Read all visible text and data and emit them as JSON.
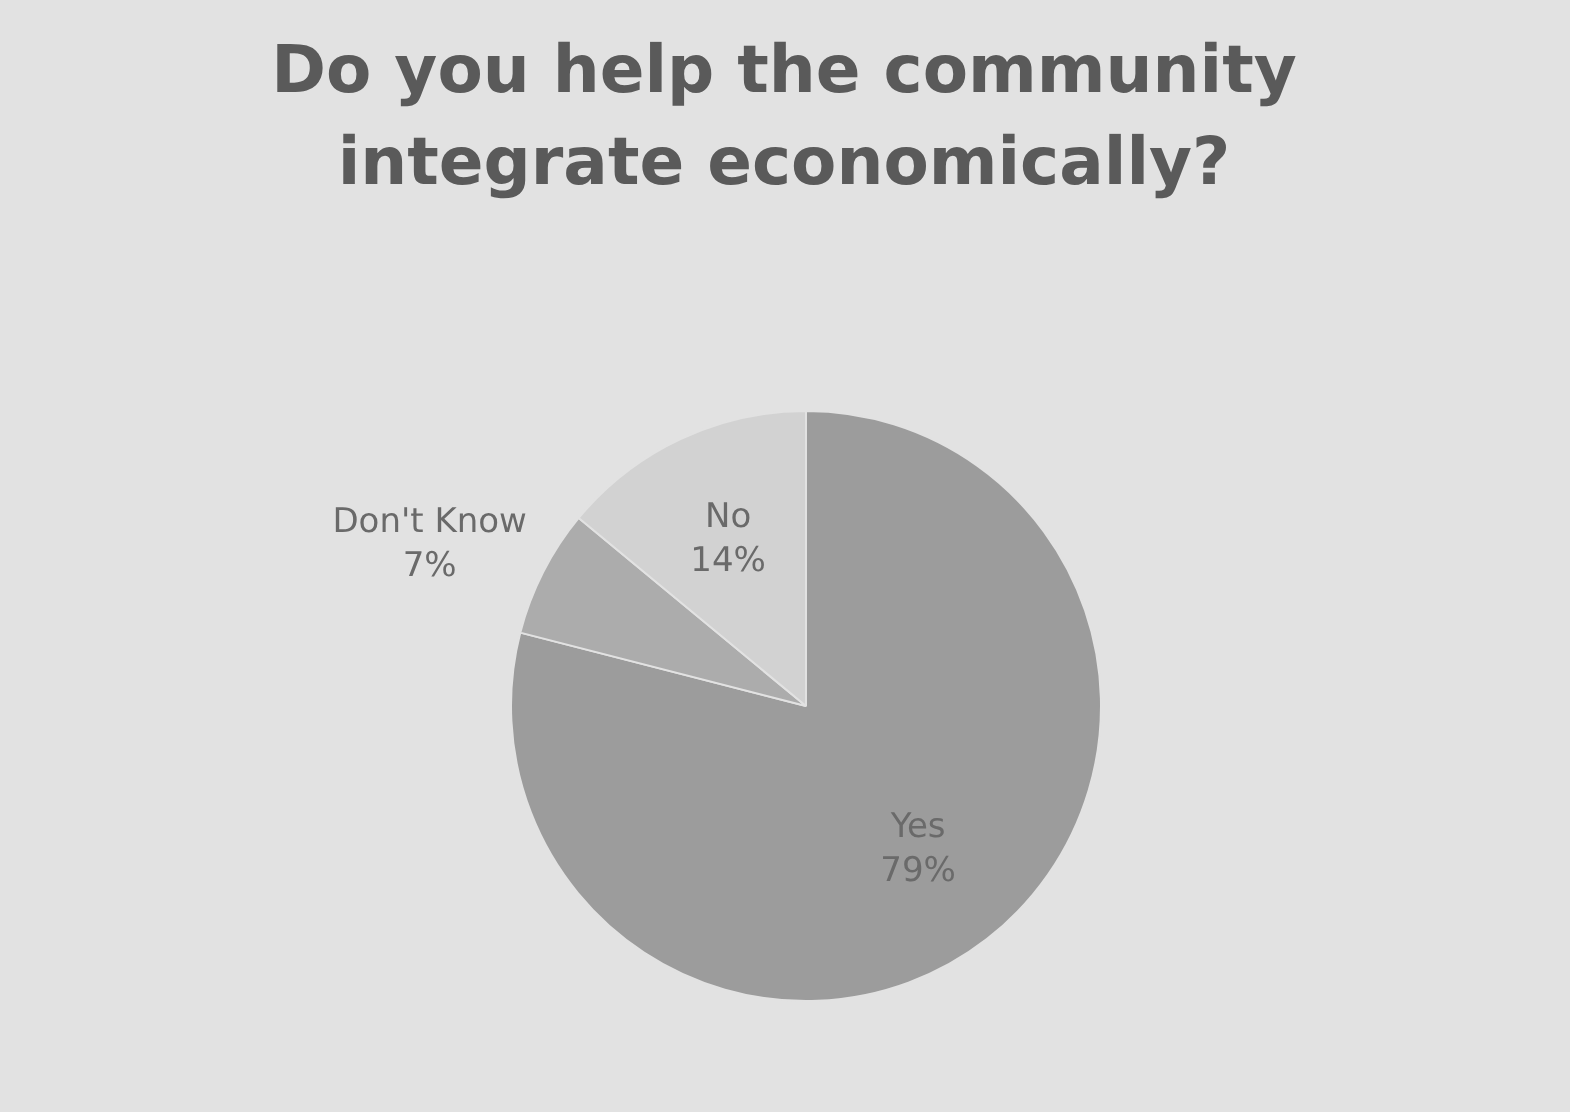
{
  "chart_data": {
    "type": "pie",
    "title": "Do you help the community integrate economically?",
    "categories": [
      "Yes",
      "Don't Know",
      "No"
    ],
    "values": [
      79,
      7,
      14
    ],
    "value_labels": [
      "79%",
      "7%",
      "14%"
    ],
    "colors": [
      "#9c9c9c",
      "#acacac",
      "#d2d2d2"
    ],
    "legend": false
  }
}
